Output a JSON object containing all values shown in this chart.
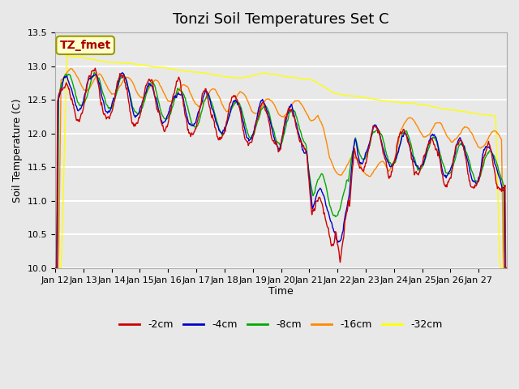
{
  "title": "Tonzi Soil Temperatures Set C",
  "xlabel": "Time",
  "ylabel": "Soil Temperature (C)",
  "ylim": [
    10.0,
    13.5
  ],
  "yticks": [
    10.0,
    10.5,
    11.0,
    11.5,
    12.0,
    12.5,
    13.0,
    13.5
  ],
  "x_labels": [
    "Jan 12",
    "Jan 13",
    "Jan 14",
    "Jan 15",
    "Jan 16",
    "Jan 17",
    "Jan 18",
    "Jan 19",
    "Jan 20",
    "Jan 21",
    "Jan 22",
    "Jan 23",
    "Jan 24",
    "Jan 25",
    "Jan 26",
    "Jan 27"
  ],
  "series_colors": [
    "#cc0000",
    "#0000cc",
    "#00aa00",
    "#ff8800",
    "#ffff00"
  ],
  "series_labels": [
    "-2cm",
    "-4cm",
    "-8cm",
    "-16cm",
    "-32cm"
  ],
  "background_color": "#e8e8e8",
  "plot_bg_color": "#e8e8e8",
  "grid_color": "#ffffff",
  "annotation_text": "TZ_fmet",
  "annotation_bg": "#ffffcc",
  "annotation_border": "#999900",
  "annotation_text_color": "#aa0000",
  "title_fontsize": 13,
  "label_fontsize": 9,
  "tick_fontsize": 8,
  "legend_fontsize": 9
}
